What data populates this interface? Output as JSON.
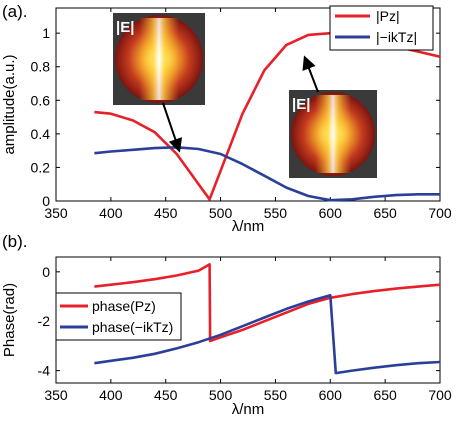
{
  "chart_data": [
    {
      "type": "line",
      "panel_label": "(a).",
      "xlabel": "λ/nm",
      "ylabel": "amplitude(a.u.)",
      "xlim": [
        350,
        700
      ],
      "ylim": [
        0,
        1.15
      ],
      "xticks": [
        "350",
        "400",
        "450",
        "500",
        "550",
        "600",
        "650",
        "700"
      ],
      "yticks": [
        "0",
        "0.2",
        "0.4",
        "0.6",
        "0.8",
        "1"
      ],
      "grid": false,
      "legend_position": "top-right",
      "series": [
        {
          "name": "|Pz|",
          "color": "#e8202a",
          "x": [
            385,
            400,
            420,
            440,
            460,
            470,
            480,
            490,
            500,
            520,
            540,
            560,
            580,
            600,
            620,
            640,
            660,
            680,
            700
          ],
          "y": [
            0.53,
            0.52,
            0.48,
            0.41,
            0.28,
            0.19,
            0.1,
            0.01,
            0.18,
            0.52,
            0.78,
            0.93,
            0.99,
            1.0,
            0.98,
            0.95,
            0.92,
            0.89,
            0.86
          ]
        },
        {
          "name": "|−ikTz|",
          "color": "#2b3f9a",
          "x": [
            385,
            400,
            420,
            440,
            460,
            480,
            500,
            520,
            540,
            560,
            580,
            600,
            620,
            640,
            660,
            680,
            700
          ],
          "y": [
            0.285,
            0.295,
            0.305,
            0.315,
            0.32,
            0.31,
            0.28,
            0.22,
            0.15,
            0.08,
            0.03,
            0.005,
            0.01,
            0.025,
            0.035,
            0.04,
            0.04
          ]
        }
      ],
      "insets": [
        {
          "label": "|E|",
          "annotation_target": [
            465,
            0.32
          ]
        },
        {
          "label": "|E|",
          "annotation_target": [
            600,
            0.97
          ]
        }
      ]
    },
    {
      "type": "line",
      "panel_label": "(b).",
      "xlabel": "λ/nm",
      "ylabel": "Phase(rad)",
      "xlim": [
        350,
        700
      ],
      "ylim": [
        -4.5,
        0.6
      ],
      "xticks": [
        "350",
        "400",
        "450",
        "500",
        "550",
        "600",
        "650",
        "700"
      ],
      "yticks": [
        "0",
        "-2",
        "-4"
      ],
      "grid": false,
      "legend_position": "middle-left",
      "series": [
        {
          "name": "phase(Pz)",
          "color": "#e8202a",
          "x": [
            385,
            400,
            420,
            440,
            460,
            480,
            490,
            490.5,
            500,
            520,
            540,
            560,
            580,
            600,
            620,
            640,
            660,
            680,
            700
          ],
          "y": [
            -0.6,
            -0.52,
            -0.42,
            -0.3,
            -0.15,
            0.05,
            0.3,
            -2.8,
            -2.65,
            -2.35,
            -2.0,
            -1.65,
            -1.3,
            -1.05,
            -0.9,
            -0.78,
            -0.68,
            -0.6,
            -0.52
          ]
        },
        {
          "name": "phase(−ikTz)",
          "color": "#2b3f9a",
          "x": [
            385,
            400,
            420,
            440,
            460,
            480,
            500,
            520,
            540,
            560,
            580,
            600,
            605,
            620,
            640,
            660,
            680,
            700
          ],
          "y": [
            -3.7,
            -3.6,
            -3.48,
            -3.32,
            -3.1,
            -2.85,
            -2.55,
            -2.2,
            -1.85,
            -1.5,
            -1.2,
            -0.95,
            -4.1,
            -4.0,
            -3.88,
            -3.78,
            -3.7,
            -3.65
          ]
        }
      ]
    }
  ]
}
